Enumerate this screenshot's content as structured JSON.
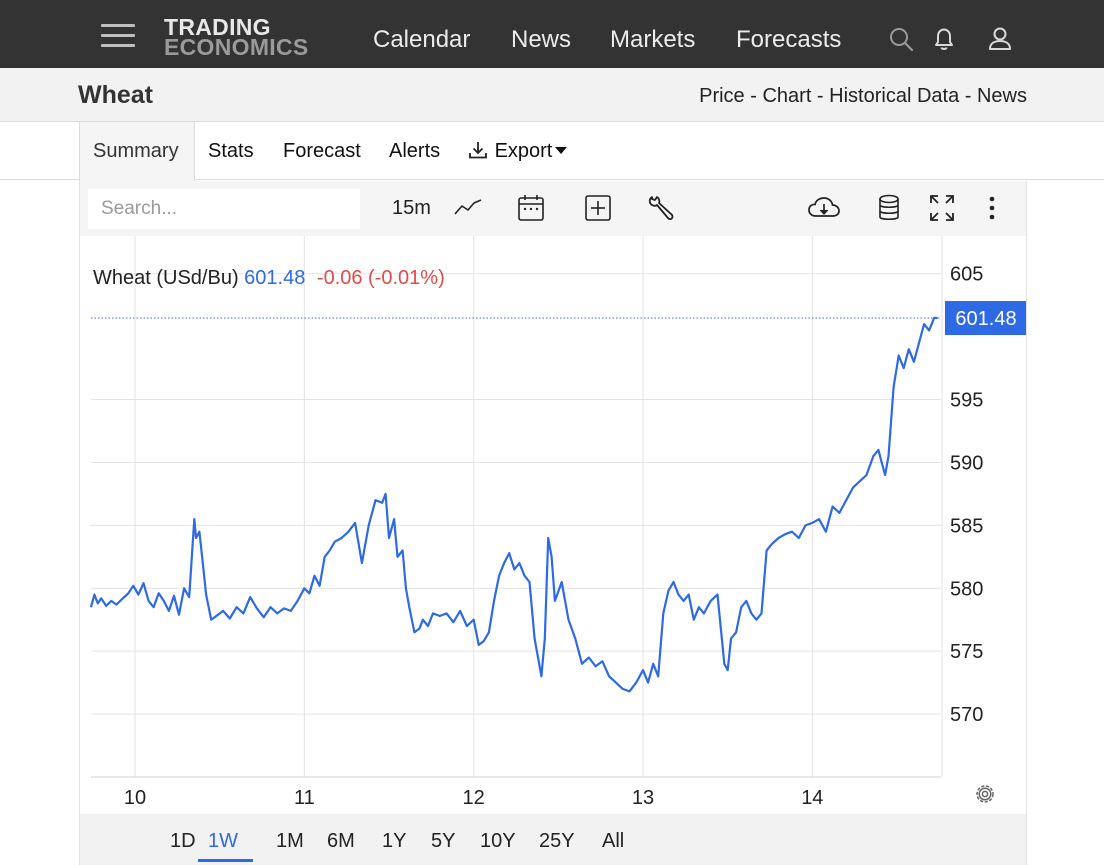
{
  "nav": {
    "logo_line1": "TRADING",
    "logo_line2": "ECONOMICS",
    "links": [
      "Calendar",
      "News",
      "Markets",
      "Forecasts"
    ],
    "icons": [
      "search-icon",
      "bell-icon",
      "user-icon"
    ]
  },
  "header": {
    "title": "Wheat",
    "breadcrumb": [
      "Price",
      "Chart",
      "Historical Data",
      "News"
    ],
    "separator": " - "
  },
  "tabs": [
    {
      "label": "Summary",
      "active": true
    },
    {
      "label": "Stats"
    },
    {
      "label": "Forecast"
    },
    {
      "label": "Alerts"
    },
    {
      "label": "Export",
      "icon": "download-icon",
      "dropdown": true
    }
  ],
  "toolbar": {
    "search_placeholder": "Search...",
    "interval": "15m",
    "icons": [
      "line-chart-icon",
      "calendar-icon",
      "add-indicator-icon",
      "wrench-icon",
      "cloud-download-icon",
      "database-icon",
      "fullscreen-icon",
      "more-vertical-icon"
    ]
  },
  "legend": {
    "name": "Wheat (USd/Bu)",
    "price": "601.48",
    "change": "-0.06 (-0.01%)"
  },
  "colors": {
    "line": "#2e6ae6",
    "negative": "#e04b4b",
    "nav_bg": "#333333"
  },
  "range_buttons": [
    {
      "label": "1D"
    },
    {
      "label": "1W",
      "active": true
    },
    {
      "label": "1M"
    },
    {
      "label": "6M"
    },
    {
      "label": "1Y"
    },
    {
      "label": "5Y"
    },
    {
      "label": "10Y"
    },
    {
      "label": "25Y"
    },
    {
      "label": "All"
    }
  ],
  "chart_data": {
    "type": "line",
    "title": "",
    "xlabel": "",
    "ylabel": "",
    "x_ticks": [
      10,
      11,
      12,
      13,
      14
    ],
    "x_range": [
      9.74,
      14.76
    ],
    "y_ticks": [
      570,
      575,
      580,
      585,
      590,
      595,
      605
    ],
    "ylim": [
      565,
      608
    ],
    "grid": true,
    "last_value": 601.48,
    "last_label": "601.48",
    "series": [
      {
        "x": [
          9.74,
          9.76,
          9.78,
          9.8,
          9.83,
          9.86,
          9.89,
          9.92,
          9.96,
          9.99,
          10.02,
          10.05,
          10.08,
          10.11,
          10.14,
          10.17,
          10.2,
          10.23,
          10.26,
          10.29,
          10.32,
          10.35,
          10.36,
          10.38,
          10.4,
          10.42,
          10.45,
          10.48,
          10.52,
          10.56,
          10.6,
          10.64,
          10.68,
          10.72,
          10.76,
          10.8,
          10.84,
          10.88,
          10.92,
          10.96,
          11.0,
          11.03,
          11.06,
          11.09,
          11.12,
          11.15,
          11.18,
          11.22,
          11.26,
          11.3,
          11.34,
          11.38,
          11.42,
          11.46,
          11.48,
          11.5,
          11.53,
          11.55,
          11.58,
          11.6,
          11.62,
          11.65,
          11.68,
          11.7,
          11.73,
          11.76,
          11.8,
          11.84,
          11.88,
          11.92,
          11.96,
          12.0,
          12.03,
          12.06,
          12.09,
          12.12,
          12.15,
          12.18,
          12.21,
          12.24,
          12.27,
          12.3,
          12.33,
          12.36,
          12.38,
          12.4,
          12.42,
          12.44,
          12.46,
          12.48,
          12.52,
          12.56,
          12.6,
          12.64,
          12.68,
          12.72,
          12.76,
          12.8,
          12.84,
          12.88,
          12.92,
          12.96,
          13.0,
          13.03,
          13.06,
          13.09,
          13.12,
          13.15,
          13.18,
          13.21,
          13.24,
          13.27,
          13.3,
          13.33,
          13.36,
          13.4,
          13.44,
          13.48,
          13.5,
          13.52,
          13.55,
          13.58,
          13.61,
          13.64,
          13.67,
          13.7,
          13.73,
          13.76,
          13.8,
          13.84,
          13.88,
          13.92,
          13.96,
          14.0,
          14.04,
          14.08,
          14.12,
          14.16,
          14.2,
          14.24,
          14.28,
          14.32,
          14.36,
          14.39,
          14.41,
          14.43,
          14.45,
          14.48,
          14.51,
          14.54,
          14.57,
          14.6,
          14.63,
          14.66,
          14.69,
          14.72,
          14.74
        ],
        "values": [
          578.5,
          579.5,
          578.8,
          579.2,
          578.6,
          579.0,
          578.7,
          579.1,
          579.6,
          580.2,
          579.5,
          580.4,
          579.0,
          578.5,
          579.6,
          579.0,
          578.2,
          579.4,
          577.9,
          580.0,
          579.3,
          585.5,
          584.0,
          584.5,
          582.0,
          579.5,
          577.5,
          577.8,
          578.2,
          577.6,
          578.5,
          578.0,
          579.3,
          578.4,
          577.7,
          578.5,
          578.0,
          578.4,
          578.2,
          579.0,
          580.0,
          579.6,
          581.0,
          580.2,
          582.5,
          583.0,
          583.7,
          584.0,
          584.5,
          585.2,
          582.0,
          585.0,
          587.0,
          586.8,
          587.5,
          584.0,
          585.5,
          582.5,
          583.0,
          580.0,
          578.5,
          576.5,
          576.8,
          577.5,
          577.0,
          578.0,
          577.8,
          578.0,
          577.3,
          578.2,
          577.0,
          577.5,
          575.5,
          575.8,
          576.5,
          579.0,
          581.0,
          582.0,
          582.8,
          581.5,
          582.0,
          581.0,
          580.5,
          576.0,
          574.5,
          573.0,
          576.0,
          584.0,
          582.5,
          579.0,
          580.5,
          577.5,
          576.0,
          574.0,
          574.5,
          573.8,
          574.2,
          573.0,
          572.5,
          572.0,
          571.8,
          572.5,
          573.5,
          572.5,
          574.0,
          573.0,
          578.0,
          579.8,
          580.5,
          579.5,
          579.0,
          579.5,
          577.5,
          578.5,
          578.0,
          579.0,
          579.5,
          574.0,
          573.5,
          576.0,
          576.5,
          578.5,
          579.0,
          578.0,
          577.5,
          578.0,
          583.0,
          583.5,
          584.0,
          584.3,
          584.5,
          584.0,
          585.0,
          585.2,
          585.5,
          584.5,
          586.5,
          586.0,
          587.0,
          588.0,
          588.5,
          589.0,
          590.5,
          591.0,
          590.0,
          589.0,
          590.5,
          596.0,
          598.5,
          597.5,
          599.0,
          598.0,
          599.5,
          601.0,
          600.5,
          601.5,
          601.48
        ]
      }
    ]
  }
}
